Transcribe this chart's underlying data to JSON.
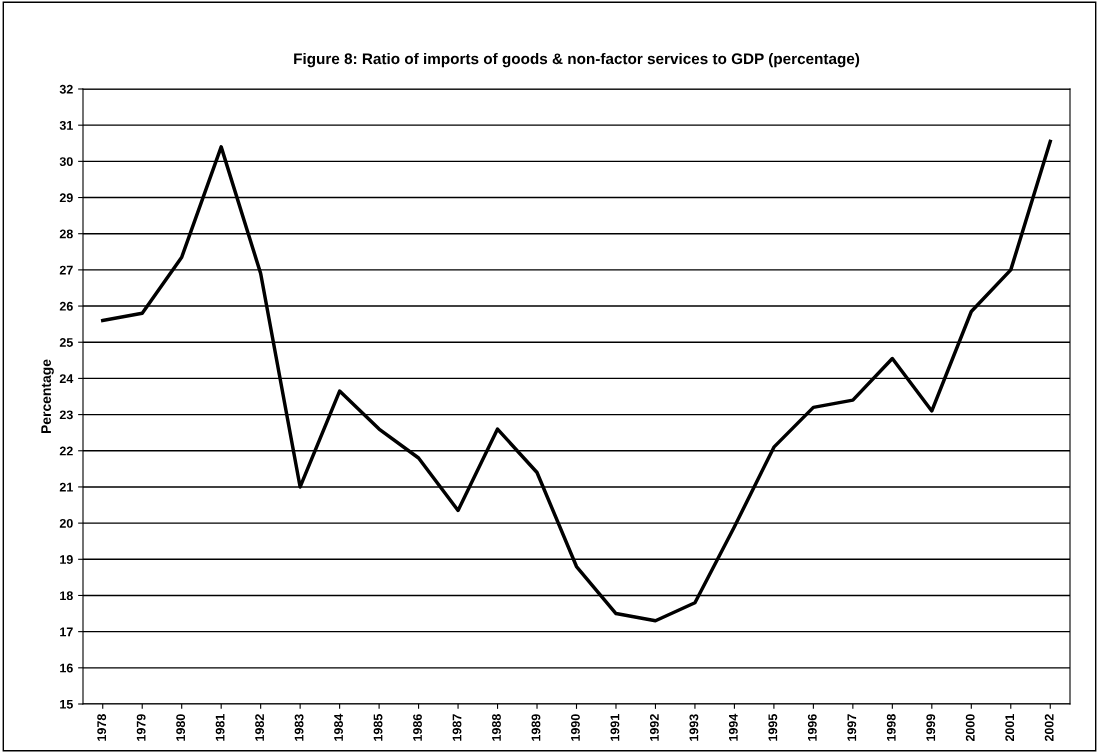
{
  "chart_data": {
    "type": "line",
    "title": "Figure 8: Ratio of imports of goods & non-factor services to GDP (percentage)",
    "ylabel": "Percentage",
    "categories": [
      "1978",
      "1979",
      "1980",
      "1981",
      "1982",
      "1983",
      "1984",
      "1985",
      "1986",
      "1987",
      "1988",
      "1989",
      "1990",
      "1991",
      "1992",
      "1993",
      "1994",
      "1995",
      "1996",
      "1997",
      "1998",
      "1999",
      "2000",
      "2001",
      "2002"
    ],
    "series": [
      {
        "color": "#000000",
        "values": [
          25.6,
          25.8,
          27.35,
          30.4,
          26.9,
          21.0,
          23.65,
          22.6,
          21.8,
          20.35,
          22.6,
          21.4,
          18.8,
          17.5,
          17.3,
          17.8,
          19.9,
          22.1,
          23.2,
          23.4,
          24.55,
          23.1,
          25.85,
          27.0,
          30.55
        ]
      }
    ],
    "ylim": [
      15,
      32
    ],
    "yticks": [
      15,
      16,
      17,
      18,
      19,
      20,
      21,
      22,
      23,
      24,
      25,
      26,
      27,
      28,
      29,
      30,
      31,
      32
    ],
    "grid": "y",
    "marker": "none",
    "line_style": "solid",
    "legend": false
  }
}
